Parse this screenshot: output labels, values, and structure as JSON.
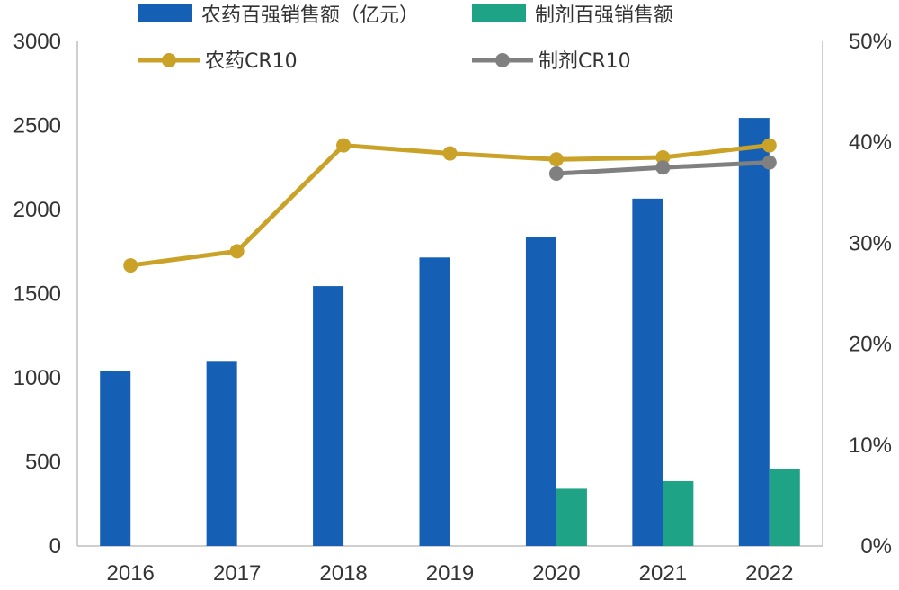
{
  "chart_data": {
    "type": "bar",
    "categories": [
      "2016",
      "2017",
      "2018",
      "2019",
      "2020",
      "2021",
      "2022"
    ],
    "series": [
      {
        "name": "农药百强销售额（亿元）",
        "kind": "bar",
        "axis": "left",
        "color": "#1560B5",
        "values": [
          1040,
          1100,
          1545,
          1715,
          1835,
          2065,
          2545
        ]
      },
      {
        "name": "制剂百强销售额",
        "kind": "bar",
        "axis": "left",
        "color": "#1FA386",
        "values": [
          null,
          null,
          null,
          null,
          340,
          385,
          455
        ]
      },
      {
        "name": "农药CR10",
        "kind": "line",
        "axis": "right",
        "color": "#C9A227",
        "values": [
          27.8,
          29.2,
          39.7,
          38.9,
          38.3,
          38.5,
          39.7
        ]
      },
      {
        "name": "制剂CR10",
        "kind": "line",
        "axis": "right",
        "color": "#808080",
        "values": [
          null,
          null,
          null,
          null,
          36.9,
          37.5,
          38.0
        ]
      }
    ],
    "y_left": {
      "ylim": [
        0,
        3000
      ],
      "ticks": [
        "0",
        "500",
        "1000",
        "1500",
        "2000",
        "2500",
        "3000"
      ]
    },
    "y_right": {
      "ylim": [
        0,
        50
      ],
      "ticks": [
        "0%",
        "10%",
        "20%",
        "30%",
        "40%",
        "50%"
      ]
    },
    "grid": false,
    "legend_position": "top"
  }
}
